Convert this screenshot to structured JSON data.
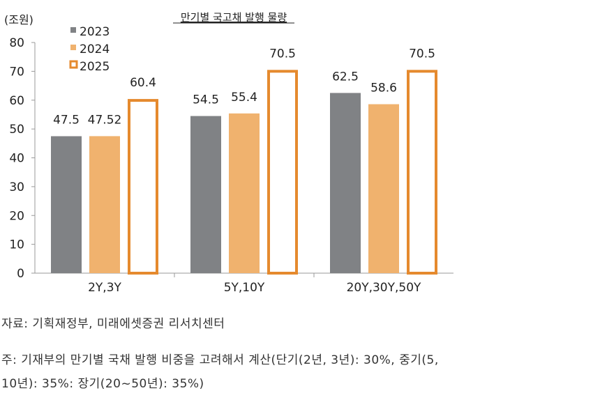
{
  "chart_data": {
    "type": "bar",
    "title": "만기별 국고채 발행 물량",
    "ylabel": "(조원)",
    "xlabel": "",
    "categories": [
      "2Y,3Y",
      "5Y,10Y",
      "20Y,30Y,50Y"
    ],
    "series": [
      {
        "name": "2023",
        "values": [
          47.5,
          54.5,
          62.5
        ],
        "color": "#808285",
        "style": "filled"
      },
      {
        "name": "2024",
        "values": [
          47.52,
          55.4,
          58.6
        ],
        "color": "#F0B26E",
        "style": "filled"
      },
      {
        "name": "2025",
        "values": [
          60.4,
          70.5,
          70.5
        ],
        "color": "#E58A2E",
        "style": "outline"
      }
    ],
    "data_labels": [
      [
        "47.5",
        "54.5",
        "62.5"
      ],
      [
        "47.52",
        "55.4",
        "58.6"
      ],
      [
        "60.4",
        "70.5",
        "70.5"
      ]
    ],
    "ylim": [
      0,
      80
    ],
    "yticks": [
      0,
      10,
      20,
      30,
      40,
      50,
      60,
      70,
      80
    ],
    "grid": false,
    "legend": "top-left"
  },
  "notes": {
    "source": "자료: 기획재정부, 미래에셋증권 리서치센터",
    "footnote_line1": "주: 기재부의 만기별 국채 발행 비중을 고려해서 계산(단기(2년, 3년): 30%, 중기(5,",
    "footnote_line2": "10년): 35%: 장기(20~50년): 35%)"
  }
}
